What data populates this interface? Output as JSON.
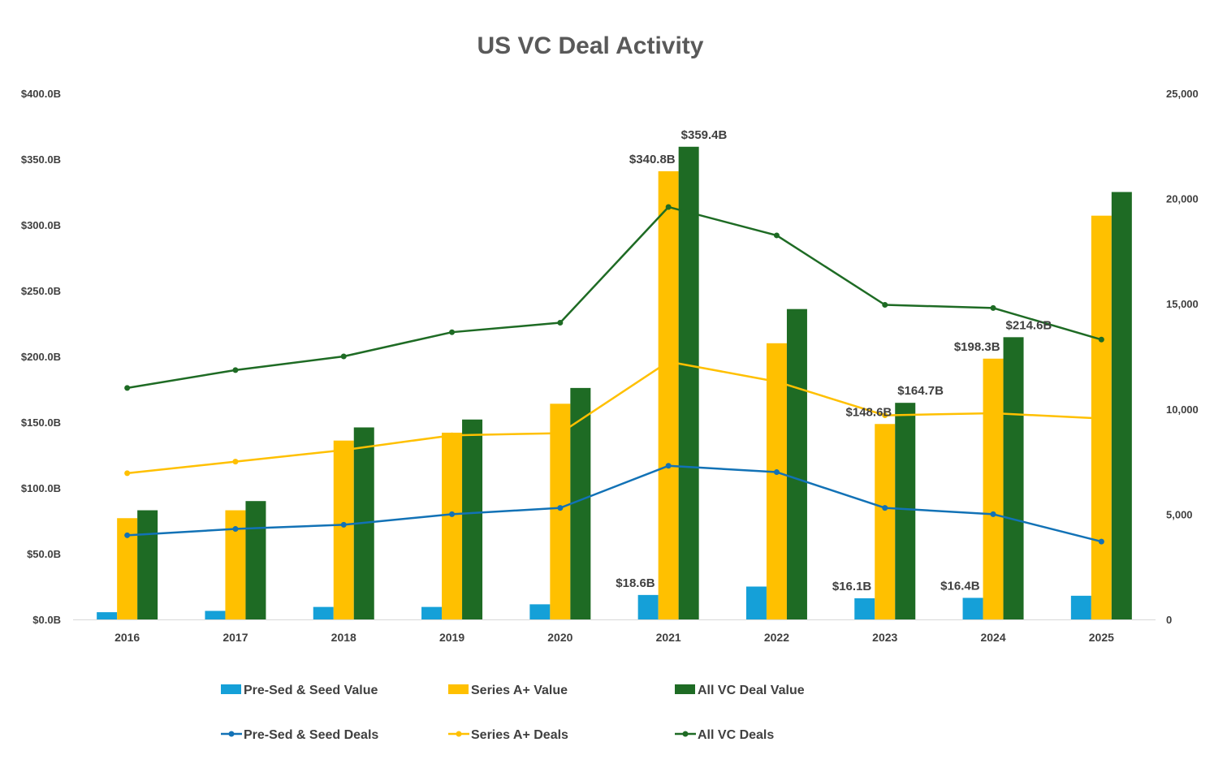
{
  "chart_data": {
    "type": "bar",
    "title": "US VC Deal Activity",
    "categories": [
      "2016",
      "2017",
      "2018",
      "2019",
      "2020",
      "2021",
      "2022",
      "2023",
      "2024",
      "2025"
    ],
    "y_left": {
      "range": [
        0,
        400
      ],
      "ticks": [
        0,
        50,
        100,
        150,
        200,
        250,
        300,
        350,
        400
      ],
      "tick_labels": [
        "$0.0B",
        "$50.0B",
        "$100.0B",
        "$150.0B",
        "$200.0B",
        "$250.0B",
        "$300.0B",
        "$350.0B",
        "$400.0B"
      ]
    },
    "y_right": {
      "range": [
        0,
        25000
      ],
      "ticks": [
        0,
        5000,
        10000,
        15000,
        20000,
        25000
      ],
      "tick_labels": [
        "0",
        "5,000",
        "10,000",
        "15,000",
        "20,000",
        "25,000"
      ]
    },
    "bar_series": [
      {
        "name": "Pre-Sed & Seed Value",
        "color": "#15A0D8",
        "values": [
          5.5,
          6.5,
          9.5,
          9.5,
          11.5,
          18.6,
          25.0,
          16.1,
          16.4,
          18.0
        ],
        "labels": [
          "",
          "",
          "",
          "",
          "",
          "$18.6B",
          "",
          "$16.1B",
          "$16.4B",
          ""
        ]
      },
      {
        "name": "Series A+ Value",
        "color": "#FFC000",
        "values": [
          77,
          83,
          136,
          142,
          164,
          340.8,
          210,
          148.6,
          198.3,
          307
        ],
        "labels": [
          "",
          "",
          "",
          "",
          "",
          "$340.8B",
          "",
          "$148.6B",
          "$198.3B",
          ""
        ]
      },
      {
        "name": "All VC Deal Value",
        "color": "#1E6B24",
        "values": [
          83,
          90,
          146,
          152,
          176,
          359.4,
          236,
          164.7,
          214.6,
          325
        ],
        "labels": [
          "",
          "",
          "",
          "",
          "",
          "$359.4B",
          "",
          "$164.7B",
          "$214.6B",
          ""
        ]
      }
    ],
    "line_series": [
      {
        "name": "Pre-Sed & Seed Deals",
        "color": "#1272B6",
        "values": [
          4000,
          4300,
          4500,
          5000,
          5300,
          7300,
          7000,
          5300,
          5000,
          3700
        ]
      },
      {
        "name": "Series A+ Deals",
        "color": "#FFC000",
        "values": [
          6950,
          7500,
          8050,
          8750,
          8850,
          12250,
          11300,
          9700,
          9800,
          9550
        ]
      },
      {
        "name": "All VC Deals",
        "color": "#1E6B24",
        "values": [
          11000,
          11850,
          12500,
          13650,
          14100,
          19600,
          18250,
          14950,
          14800,
          13300
        ]
      }
    ],
    "legend": {
      "position": "bottom",
      "items": [
        "Pre-Sed & Seed Value",
        "Series A+ Value",
        "All VC Deal Value",
        "Pre-Sed & Seed Deals",
        "Series A+ Deals",
        "All VC Deals"
      ]
    }
  }
}
